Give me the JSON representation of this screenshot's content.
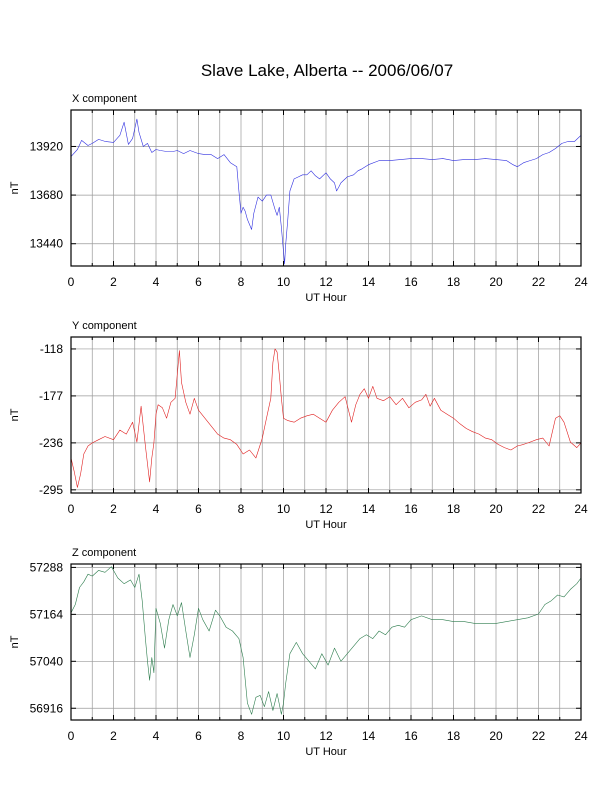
{
  "title": "Slave Lake, Alberta -- 2006/06/07",
  "chart_data": [
    {
      "type": "line",
      "panel_label": "X component",
      "xlabel": "UT Hour",
      "ylabel": "nT",
      "xlim": [
        0,
        24
      ],
      "ylim": [
        13330,
        14100
      ],
      "xticks": [
        0,
        2,
        4,
        6,
        8,
        10,
        12,
        14,
        16,
        18,
        20,
        22,
        24
      ],
      "yticks": [
        13440,
        13680,
        13920
      ],
      "grid": true,
      "color": "#3030e0",
      "series": [
        {
          "x": [
            0,
            0.3,
            0.5,
            0.8,
            1.0,
            1.3,
            1.6,
            2.0,
            2.3,
            2.5,
            2.7,
            2.9,
            3.1,
            3.2,
            3.4,
            3.6,
            3.8,
            4.0,
            4.2,
            4.5,
            4.8,
            5.0,
            5.3,
            5.6,
            6.0,
            6.3,
            6.6,
            6.9,
            7.2,
            7.5,
            7.8,
            7.9,
            8.0,
            8.1,
            8.2,
            8.3,
            8.5,
            8.6,
            8.8,
            9.0,
            9.2,
            9.4,
            9.6,
            9.7,
            9.8,
            9.9,
            10.0,
            10.05,
            10.1,
            10.2,
            10.3,
            10.5,
            10.7,
            10.9,
            11.1,
            11.3,
            11.5,
            11.7,
            12.0,
            12.2,
            12.4,
            12.5,
            12.6,
            12.7,
            12.8,
            13.0,
            13.3,
            13.5,
            13.7,
            14.0,
            14.5,
            15.0,
            15.5,
            16.0,
            16.5,
            17.0,
            17.5,
            18.0,
            18.5,
            19.0,
            19.5,
            20.0,
            20.5,
            20.8,
            21.0,
            21.3,
            21.6,
            21.9,
            22.2,
            22.5,
            22.8,
            23.1,
            23.4,
            23.7,
            24.0
          ],
          "y": [
            13870,
            13905,
            13950,
            13925,
            13935,
            13955,
            13945,
            13940,
            13975,
            14040,
            13930,
            13960,
            14055,
            13990,
            13920,
            13935,
            13890,
            13905,
            13900,
            13895,
            13895,
            13900,
            13885,
            13900,
            13885,
            13880,
            13880,
            13860,
            13880,
            13840,
            13820,
            13700,
            13590,
            13620,
            13600,
            13560,
            13510,
            13590,
            13670,
            13650,
            13680,
            13680,
            13610,
            13580,
            13620,
            13520,
            13400,
            13340,
            13430,
            13560,
            13700,
            13760,
            13770,
            13780,
            13780,
            13800,
            13775,
            13760,
            13790,
            13760,
            13740,
            13700,
            13720,
            13740,
            13750,
            13770,
            13780,
            13800,
            13810,
            13830,
            13850,
            13850,
            13855,
            13860,
            13860,
            13855,
            13860,
            13850,
            13855,
            13855,
            13860,
            13855,
            13850,
            13830,
            13820,
            13840,
            13850,
            13860,
            13880,
            13890,
            13910,
            13935,
            13945,
            13945,
            13975
          ]
        }
      ]
    },
    {
      "type": "line",
      "panel_label": "Y component",
      "xlabel": "UT Hour",
      "ylabel": "nT",
      "xlim": [
        0,
        24
      ],
      "ylim": [
        -299,
        -103
      ],
      "xticks": [
        0,
        2,
        4,
        6,
        8,
        10,
        12,
        14,
        16,
        18,
        20,
        22,
        24
      ],
      "yticks": [
        -295,
        -236,
        -177,
        -118
      ],
      "grid": true,
      "color": "#e02020",
      "series": [
        {
          "x": [
            0,
            0.15,
            0.3,
            0.45,
            0.6,
            0.8,
            1.0,
            1.3,
            1.6,
            2.0,
            2.3,
            2.6,
            2.9,
            3.1,
            3.3,
            3.5,
            3.7,
            3.8,
            3.9,
            4.0,
            4.1,
            4.3,
            4.5,
            4.7,
            4.9,
            5.0,
            5.1,
            5.2,
            5.4,
            5.6,
            5.8,
            6.0,
            6.3,
            6.6,
            6.9,
            7.2,
            7.5,
            7.8,
            8.1,
            8.4,
            8.7,
            9.0,
            9.2,
            9.4,
            9.5,
            9.6,
            9.7,
            9.8,
            9.9,
            10.0,
            10.2,
            10.5,
            10.8,
            11.1,
            11.4,
            11.7,
            12.0,
            12.3,
            12.6,
            12.9,
            13.2,
            13.4,
            13.6,
            13.8,
            14.0,
            14.2,
            14.4,
            14.7,
            15.0,
            15.3,
            15.6,
            15.9,
            16.2,
            16.5,
            16.7,
            16.9,
            17.1,
            17.4,
            17.7,
            18.0,
            18.3,
            18.6,
            18.9,
            19.2,
            19.5,
            19.8,
            20.1,
            20.4,
            20.7,
            21.0,
            21.3,
            21.6,
            21.9,
            22.2,
            22.5,
            22.8,
            23.0,
            23.2,
            23.5,
            23.8,
            24.0
          ],
          "y": [
            -255,
            -272,
            -292,
            -275,
            -250,
            -240,
            -236,
            -232,
            -228,
            -232,
            -220,
            -225,
            -210,
            -235,
            -190,
            -240,
            -285,
            -255,
            -236,
            -200,
            -188,
            -192,
            -205,
            -185,
            -180,
            -150,
            -120,
            -160,
            -185,
            -200,
            -180,
            -195,
            -205,
            -215,
            -225,
            -230,
            -232,
            -238,
            -250,
            -245,
            -255,
            -230,
            -205,
            -180,
            -135,
            -118,
            -122,
            -150,
            -180,
            -205,
            -208,
            -210,
            -205,
            -202,
            -200,
            -205,
            -210,
            -195,
            -185,
            -178,
            -210,
            -188,
            -175,
            -168,
            -180,
            -165,
            -180,
            -183,
            -178,
            -188,
            -180,
            -192,
            -185,
            -182,
            -175,
            -190,
            -180,
            -195,
            -200,
            -205,
            -212,
            -218,
            -222,
            -225,
            -230,
            -232,
            -238,
            -242,
            -245,
            -240,
            -238,
            -235,
            -232,
            -230,
            -240,
            -205,
            -202,
            -210,
            -235,
            -242,
            -236
          ]
        }
      ]
    },
    {
      "type": "line",
      "panel_label": "Z component",
      "xlabel": "UT Hour",
      "ylabel": "nT",
      "xlim": [
        0,
        24
      ],
      "ylim": [
        56885,
        57297
      ],
      "xticks": [
        0,
        2,
        4,
        6,
        8,
        10,
        12,
        14,
        16,
        18,
        20,
        22,
        24
      ],
      "yticks": [
        56916,
        57040,
        57164,
        57288
      ],
      "grid": true,
      "color": "#2e7d4e",
      "series": [
        {
          "x": [
            0,
            0.2,
            0.4,
            0.6,
            0.8,
            1.0,
            1.3,
            1.6,
            1.9,
            2.2,
            2.5,
            2.8,
            3.0,
            3.2,
            3.35,
            3.5,
            3.6,
            3.7,
            3.8,
            3.9,
            4.0,
            4.2,
            4.4,
            4.6,
            4.8,
            5.0,
            5.2,
            5.4,
            5.6,
            5.8,
            6.0,
            6.2,
            6.5,
            6.8,
            7.0,
            7.3,
            7.6,
            7.9,
            8.1,
            8.3,
            8.5,
            8.7,
            8.9,
            9.1,
            9.3,
            9.5,
            9.7,
            9.9,
            10.0,
            10.1,
            10.3,
            10.6,
            10.9,
            11.2,
            11.5,
            11.8,
            12.1,
            12.4,
            12.7,
            13.0,
            13.3,
            13.6,
            13.9,
            14.2,
            14.5,
            14.8,
            15.1,
            15.4,
            15.7,
            16.0,
            16.5,
            17.0,
            17.5,
            18.0,
            18.5,
            19.0,
            19.5,
            20.0,
            20.5,
            21.0,
            21.5,
            22.0,
            22.3,
            22.6,
            22.9,
            23.2,
            23.5,
            23.8,
            24.0
          ],
          "y": [
            57168,
            57190,
            57235,
            57250,
            57270,
            57265,
            57280,
            57275,
            57290,
            57260,
            57245,
            57255,
            57235,
            57270,
            57200,
            57100,
            57040,
            56990,
            57050,
            57010,
            57180,
            57140,
            57075,
            57150,
            57190,
            57160,
            57195,
            57120,
            57050,
            57110,
            57180,
            57150,
            57120,
            57175,
            57160,
            57130,
            57120,
            57100,
            57050,
            56930,
            56900,
            56945,
            56950,
            56920,
            56960,
            56910,
            56955,
            56900,
            56930,
            56980,
            57060,
            57090,
            57060,
            57040,
            57020,
            57060,
            57030,
            57075,
            57040,
            57060,
            57080,
            57100,
            57110,
            57100,
            57120,
            57110,
            57130,
            57135,
            57130,
            57150,
            57160,
            57150,
            57150,
            57145,
            57145,
            57140,
            57140,
            57140,
            57145,
            57150,
            57155,
            57165,
            57190,
            57200,
            57215,
            57210,
            57230,
            57245,
            57260
          ]
        }
      ]
    }
  ]
}
